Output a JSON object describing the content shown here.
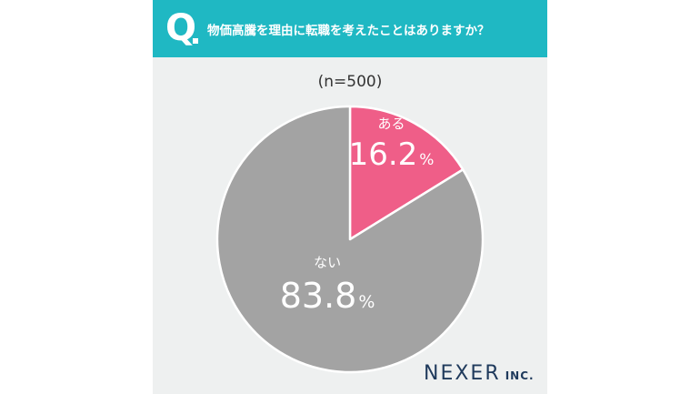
{
  "question": {
    "mark": "Q",
    "text": "物価高騰を理由に転職を考えたことはありますか？"
  },
  "sample_size": "(n=500)",
  "logo": {
    "main": "NEXER",
    "sub": "INC."
  },
  "colors": {
    "header": "#1fb8c3",
    "yes": "#ef5e88",
    "no": "#a3a3a3",
    "background": "#eef0f0"
  },
  "chart_data": {
    "type": "pie",
    "slices": [
      {
        "name": "ある",
        "value": 16.2,
        "label": "16.2",
        "unit": "%",
        "color": "#ef5e88"
      },
      {
        "name": "ない",
        "value": 83.8,
        "label": "83.8",
        "unit": "%",
        "color": "#a3a3a3"
      }
    ],
    "start": "12 o'clock",
    "direction": "clockwise"
  }
}
